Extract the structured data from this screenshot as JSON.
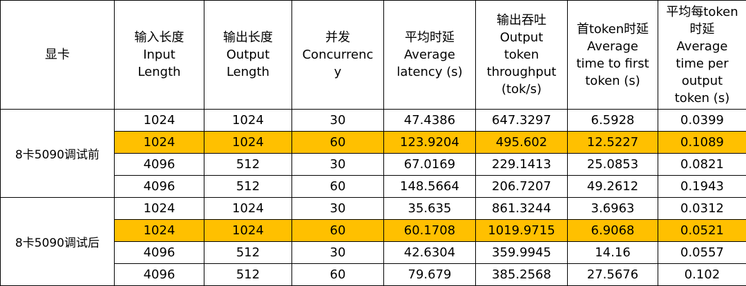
{
  "headers": [
    {
      "lines": [
        "显卡"
      ]
    },
    {
      "lines": [
        "输入长度",
        "Input",
        "Length"
      ]
    },
    {
      "lines": [
        "输出长度",
        "Output",
        "Length"
      ]
    },
    {
      "lines": [
        "并发",
        "Concurrenc",
        "y"
      ]
    },
    {
      "lines": [
        "平均时延",
        "Average",
        "latency (s)"
      ]
    },
    {
      "lines": [
        "输出吞吐",
        "Output",
        "token",
        "throughput",
        "(tok/s)"
      ]
    },
    {
      "lines": [
        "首token时延",
        "Average",
        "time to first",
        "token (s)"
      ]
    },
    {
      "lines": [
        "平均每token",
        "时延",
        "Average",
        "time per",
        "output",
        "token (s)"
      ]
    }
  ],
  "groups": [
    {
      "label": "8卡5090调试前",
      "rows": [
        {
          "highlight": false,
          "cells": [
            "1024",
            "1024",
            "30",
            "47.4386",
            "647.3297",
            "6.5928",
            "0.0399"
          ]
        },
        {
          "highlight": true,
          "cells": [
            "1024",
            "1024",
            "60",
            "123.9204",
            "495.602",
            "12.5227",
            "0.1089"
          ]
        },
        {
          "highlight": false,
          "cells": [
            "4096",
            "512",
            "30",
            "67.0169",
            "229.1413",
            "25.0853",
            "0.0821"
          ]
        },
        {
          "highlight": false,
          "cells": [
            "4096",
            "512",
            "60",
            "148.5664",
            "206.7207",
            "49.2612",
            "0.1943"
          ]
        }
      ]
    },
    {
      "label": "8卡5090调试后",
      "rows": [
        {
          "highlight": false,
          "cells": [
            "1024",
            "1024",
            "30",
            "35.635",
            "861.3244",
            "3.6963",
            "0.0312"
          ]
        },
        {
          "highlight": true,
          "cells": [
            "1024",
            "1024",
            "60",
            "60.1708",
            "1019.9715",
            "6.9068",
            "0.0521"
          ]
        },
        {
          "highlight": false,
          "cells": [
            "4096",
            "512",
            "30",
            "42.6304",
            "359.9945",
            "14.16",
            "0.0557"
          ]
        },
        {
          "highlight": false,
          "cells": [
            "4096",
            "512",
            "60",
            "79.679",
            "385.2568",
            "27.5676",
            "0.102"
          ]
        }
      ]
    }
  ],
  "colors": {
    "highlight": "#ffc000",
    "border": "#000000"
  }
}
